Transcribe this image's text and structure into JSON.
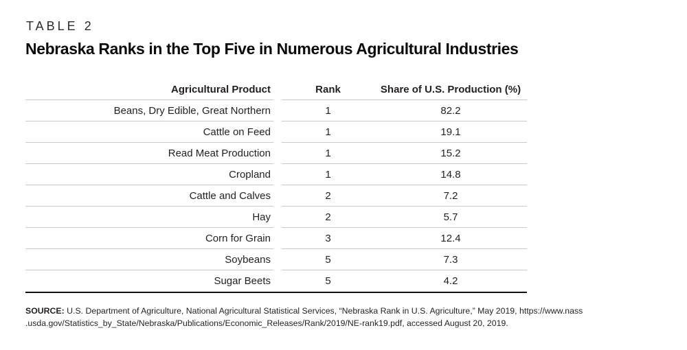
{
  "header": {
    "kicker": "TABLE 2",
    "title": "Nebraska Ranks in the Top Five in Numerous Agricultural Industries"
  },
  "chart_data": {
    "type": "table",
    "title": "Nebraska Ranks in the Top Five in Numerous Agricultural Industries",
    "columns": [
      "Agricultural Product",
      "Rank",
      "Share of U.S. Production (%)"
    ],
    "rows": [
      [
        "Beans, Dry Edible, Great Northern",
        "1",
        "82.2"
      ],
      [
        "Cattle on Feed",
        "1",
        "19.1"
      ],
      [
        "Read Meat Production",
        "1",
        "15.2"
      ],
      [
        "Cropland",
        "1",
        "14.8"
      ],
      [
        "Cattle and Calves",
        "2",
        "7.2"
      ],
      [
        "Hay",
        "2",
        "5.7"
      ],
      [
        "Corn for Grain",
        "3",
        "12.4"
      ],
      [
        "Soybeans",
        "5",
        "7.3"
      ],
      [
        "Sugar Beets",
        "5",
        "4.2"
      ]
    ]
  },
  "source": {
    "label": "SOURCE:",
    "line1": "U.S. Department of Agriculture, National Agricultural Statistical Services, “Nebraska Rank in U.S. Agriculture,” May 2019, https://www.nass",
    "line2": ".usda.gov/Statistics_by_State/Nebraska/Publications/Economic_Releases/Rank/2019/NE-rank19.pdf, accessed August 20, 2019."
  }
}
